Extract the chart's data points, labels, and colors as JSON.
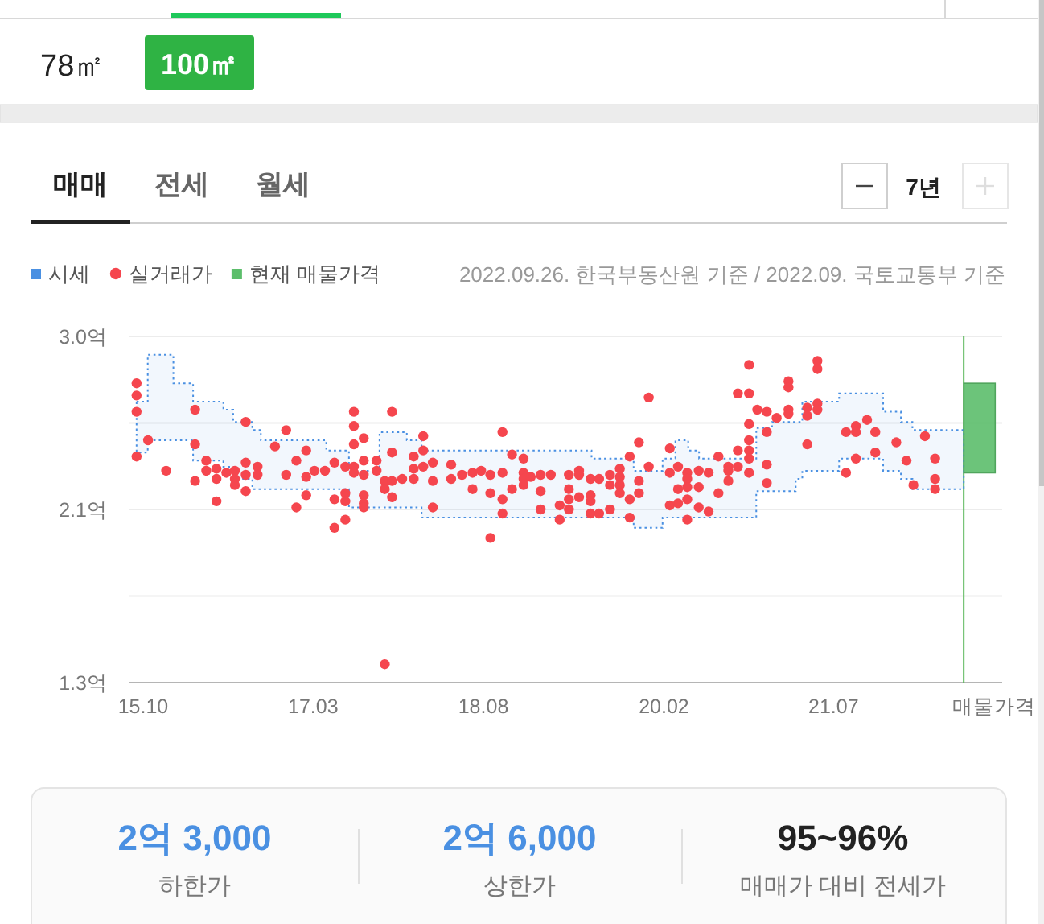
{
  "chart_data": {
    "type": "scatter",
    "xlim": [
      "2015-08-18",
      "2022-11-26"
    ],
    "xticks": [
      {
        "value": "2015-10-01",
        "label": "15.10"
      },
      {
        "value": "2017-03-01",
        "label": "17.03"
      },
      {
        "value": "2018-08-01",
        "label": "18.08"
      },
      {
        "value": "2020-02-01",
        "label": "20.02"
      },
      {
        "value": "2021-07-01",
        "label": "21.07"
      },
      {
        "value": "2022-11-01",
        "label": "매물가격"
      }
    ],
    "ylim": [
      1.3,
      3.0
    ],
    "yticks": [
      {
        "value": 1.3,
        "label": "1.3억"
      },
      {
        "value": 1.725,
        "label": null
      },
      {
        "value": 2.15,
        "label": "2.1억"
      },
      {
        "value": 2.575,
        "label": null
      },
      {
        "value": 3.0,
        "label": "3.0억"
      }
    ],
    "grid": "y",
    "legend": "top left",
    "series": [
      {
        "name": "시세",
        "type": "step",
        "color": "#4a90e2",
        "line_style": "dotted",
        "x": [
          "2015-09-11",
          "2015-10-15",
          "2016-01-01",
          "2016-03-01",
          "2016-06-01",
          "2016-07-01",
          "2016-08-28",
          "2016-09-23",
          "2017-04-10",
          "2017-06-18",
          "2017-09-19",
          "2017-12-11",
          "2018-01-25",
          "2019-06-26",
          "2019-11-01",
          "2020-01-28",
          "2020-03-07",
          "2020-04-15",
          "2020-05-18",
          "2020-11-08",
          "2020-12-26",
          "2021-03-08",
          "2021-03-28",
          "2021-07-18",
          "2021-11-29",
          "2022-01-22",
          "2022-02-26",
          "2022-08-01"
        ],
        "values": [
          null,
          null,
          null,
          null,
          null,
          null,
          null,
          null,
          null,
          null,
          null,
          null,
          null,
          null,
          null,
          null,
          null,
          null,
          null,
          null,
          null,
          null,
          null,
          null,
          null,
          null,
          null,
          null
        ],
        "upper": [
          2.68,
          2.91,
          2.77,
          2.68,
          2.64,
          2.58,
          2.54,
          2.49,
          2.44,
          2.34,
          2.53,
          2.49,
          2.44,
          2.4,
          2.34,
          2.4,
          2.49,
          2.44,
          2.4,
          2.55,
          2.58,
          2.58,
          2.68,
          2.72,
          2.63,
          2.58,
          2.54,
          2.54
        ],
        "lower": [
          2.43,
          2.49,
          2.49,
          2.39,
          2.36,
          2.3,
          2.25,
          2.25,
          2.25,
          2.16,
          2.16,
          2.16,
          2.11,
          2.11,
          2.06,
          2.11,
          2.11,
          2.11,
          2.11,
          2.24,
          2.24,
          2.3,
          2.34,
          2.4,
          2.34,
          2.3,
          2.25,
          2.25
        ]
      },
      {
        "name": "실거래가",
        "color": "#f5464e",
        "marker": "circle",
        "x": [
          "2015-09-11",
          "2015-09-11",
          "2015-09-11",
          "2015-09-11",
          "2015-10-16",
          "2015-12-10",
          "2016-03-07",
          "2016-03-07",
          "2016-03-07",
          "2016-04-10",
          "2016-04-10",
          "2016-05-11",
          "2016-05-11",
          "2016-05-11",
          "2016-06-10",
          "2016-07-06",
          "2016-07-06",
          "2016-07-06",
          "2016-08-08",
          "2016-08-08",
          "2016-08-08",
          "2016-08-08",
          "2016-09-13",
          "2016-09-13",
          "2016-11-05",
          "2016-12-09",
          "2016-12-09",
          "2017-01-09",
          "2017-01-09",
          "2017-02-08",
          "2017-02-08",
          "2017-02-08",
          "2017-03-05",
          "2017-04-06",
          "2017-05-05",
          "2017-05-05",
          "2017-05-05",
          "2017-06-07",
          "2017-06-07",
          "2017-06-07",
          "2017-06-07",
          "2017-07-03",
          "2017-07-03",
          "2017-07-03",
          "2017-07-03",
          "2017-07-03",
          "2017-08-02",
          "2017-08-02",
          "2017-08-02",
          "2017-08-02",
          "2017-08-02",
          "2017-08-02",
          "2017-09-10",
          "2017-09-10",
          "2017-10-05",
          "2017-10-05",
          "2017-10-05",
          "2017-10-27",
          "2017-10-27",
          "2017-10-27",
          "2017-10-27",
          "2017-11-27",
          "2018-01-01",
          "2018-01-01",
          "2018-01-01",
          "2018-01-30",
          "2018-01-30",
          "2018-01-30",
          "2018-02-28",
          "2018-02-28",
          "2018-02-28",
          "2018-04-25",
          "2018-04-25",
          "2018-05-28",
          "2018-06-29",
          "2018-06-29",
          "2018-07-25",
          "2018-08-22",
          "2018-08-22",
          "2018-08-22",
          "2018-09-28",
          "2018-09-28",
          "2018-09-28",
          "2018-09-28",
          "2018-10-27",
          "2018-10-27",
          "2018-12-01",
          "2018-12-01",
          "2018-12-01",
          "2018-12-01",
          "2018-12-23",
          "2019-01-22",
          "2019-01-22",
          "2019-01-22",
          "2019-02-22",
          "2019-03-21",
          "2019-03-21",
          "2019-04-18",
          "2019-04-18",
          "2019-04-18",
          "2019-04-18",
          "2019-05-19",
          "2019-05-19",
          "2019-05-19",
          "2019-06-23",
          "2019-06-23",
          "2019-06-23",
          "2019-06-23",
          "2019-07-19",
          "2019-07-19",
          "2019-08-21",
          "2019-08-21",
          "2019-08-21",
          "2019-09-20",
          "2019-09-20",
          "2019-09-20",
          "2019-09-20",
          "2019-10-20",
          "2019-10-20",
          "2019-10-20",
          "2019-11-17",
          "2019-11-17",
          "2019-11-17",
          "2019-12-17",
          "2019-12-17",
          "2020-02-19",
          "2020-02-19",
          "2020-02-19",
          "2020-03-15",
          "2020-03-15",
          "2020-03-15",
          "2020-04-12",
          "2020-04-12",
          "2020-04-12",
          "2020-04-12",
          "2020-04-12",
          "2020-05-17",
          "2020-05-17",
          "2020-05-17",
          "2020-06-16",
          "2020-06-16",
          "2020-07-16",
          "2020-07-16",
          "2020-08-15",
          "2020-08-15",
          "2020-08-15",
          "2020-09-13",
          "2020-09-13",
          "2020-09-13",
          "2020-10-17",
          "2020-10-17",
          "2020-10-17",
          "2020-10-17",
          "2020-10-17",
          "2020-10-17",
          "2020-10-17",
          "2020-11-11",
          "2020-12-10",
          "2020-12-10",
          "2020-12-10",
          "2020-12-10",
          "2021-01-09",
          "2021-02-14",
          "2021-02-14",
          "2021-02-14",
          "2021-02-14",
          "2021-04-12",
          "2021-04-12",
          "2021-04-12",
          "2021-05-13",
          "2021-05-13",
          "2021-05-13",
          "2021-05-13",
          "2021-08-08",
          "2021-08-08",
          "2021-09-07",
          "2021-09-07",
          "2021-09-07",
          "2021-10-11",
          "2021-11-05",
          "2021-11-05",
          "2022-01-08",
          "2022-02-08",
          "2022-03-01",
          "2022-04-05",
          "2022-05-06",
          "2022-05-06",
          "2022-05-06"
        ],
        "values": [
          2.77,
          2.71,
          2.63,
          2.41,
          2.49,
          2.34,
          2.64,
          2.47,
          2.29,
          2.39,
          2.34,
          2.35,
          2.3,
          2.19,
          2.33,
          2.34,
          2.3,
          2.27,
          2.58,
          2.38,
          2.32,
          2.24,
          2.36,
          2.32,
          2.46,
          2.54,
          2.32,
          2.39,
          2.16,
          2.44,
          2.31,
          2.22,
          2.34,
          2.34,
          2.38,
          2.2,
          2.06,
          2.36,
          2.23,
          2.19,
          2.1,
          2.63,
          2.56,
          2.47,
          2.36,
          2.33,
          2.5,
          2.39,
          2.32,
          2.22,
          2.18,
          2.16,
          2.39,
          2.34,
          2.29,
          2.25,
          1.39,
          2.63,
          2.43,
          2.29,
          2.21,
          2.3,
          2.41,
          2.35,
          2.3,
          2.51,
          2.44,
          2.36,
          2.38,
          2.29,
          2.16,
          2.37,
          2.3,
          2.32,
          2.33,
          2.25,
          2.34,
          2.32,
          2.23,
          2.01,
          2.53,
          2.33,
          2.2,
          2.13,
          2.42,
          2.25,
          2.4,
          2.33,
          2.3,
          2.27,
          2.31,
          2.32,
          2.24,
          2.15,
          2.32,
          2.17,
          2.1,
          2.32,
          2.25,
          2.2,
          2.15,
          2.34,
          2.32,
          2.21,
          2.3,
          2.22,
          2.19,
          2.13,
          2.3,
          2.13,
          2.32,
          2.27,
          2.15,
          2.35,
          2.31,
          2.27,
          2.23,
          2.41,
          2.2,
          2.11,
          2.48,
          2.29,
          2.23,
          2.7,
          2.36,
          2.45,
          2.33,
          2.17,
          2.36,
          2.25,
          2.18,
          2.33,
          2.3,
          2.26,
          2.2,
          2.1,
          2.34,
          2.26,
          2.16,
          2.33,
          2.14,
          2.41,
          2.23,
          2.36,
          2.34,
          2.29,
          2.72,
          2.44,
          2.36,
          2.86,
          2.72,
          2.57,
          2.49,
          2.44,
          2.4,
          2.33,
          2.64,
          2.63,
          2.53,
          2.37,
          2.28,
          2.6,
          2.78,
          2.75,
          2.64,
          2.62,
          2.65,
          2.61,
          2.47,
          2.88,
          2.84,
          2.67,
          2.64,
          2.53,
          2.33,
          2.56,
          2.53,
          2.4,
          2.59,
          2.53,
          2.43,
          2.48,
          2.39,
          2.27,
          2.51,
          2.4,
          2.3,
          2.25
        ]
      },
      {
        "name": "현재 매물가격",
        "type": "bar",
        "color": "#5cbe6b",
        "x": [
          "2022-09-18"
        ],
        "values": [
          0.44
        ],
        "base": [
          2.33
        ]
      }
    ],
    "ref_lines": [
      {
        "axis": "x",
        "value": "2022-08-01",
        "label": null,
        "color": "#5cb85c"
      }
    ],
    "annotations": [
      "78㎡",
      "100㎡",
      "매매",
      "전세",
      "월세",
      "7년",
      "2022.09.26. 한국부동산원 기준 / 2022.09. 국토교통부 기준",
      "2억 3,000",
      "하한가",
      "2억 6,000",
      "상한가",
      "95~96%",
      "매매가 대비 전세가"
    ]
  }
}
